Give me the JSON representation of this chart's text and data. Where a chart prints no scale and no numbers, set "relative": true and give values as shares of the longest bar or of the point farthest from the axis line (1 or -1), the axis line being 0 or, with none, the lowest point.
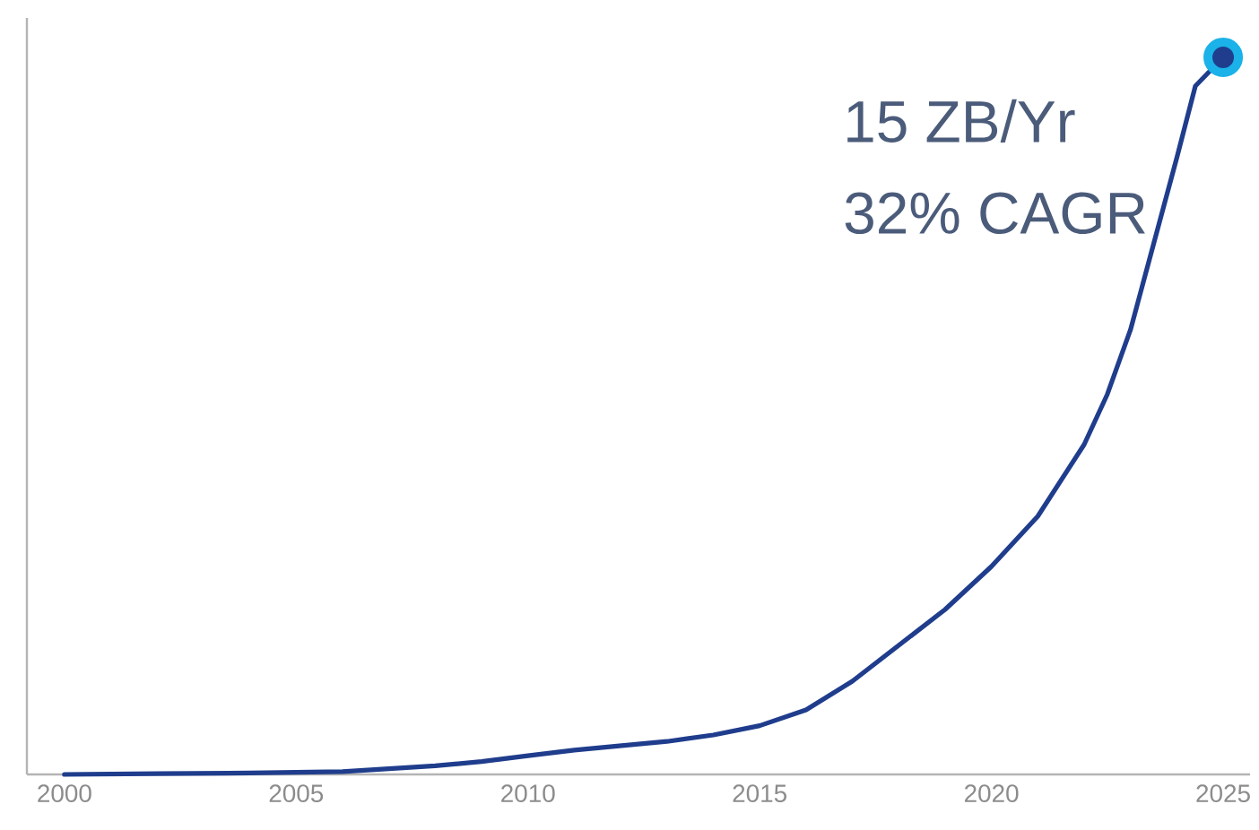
{
  "chart_data": {
    "type": "line",
    "relative": true,
    "marker": "none",
    "x": [
      2000,
      2002,
      2004,
      2006,
      2007,
      2008,
      2009,
      2010,
      2011,
      2012,
      2013,
      2014,
      2015,
      2016,
      2017,
      2018,
      2019,
      2020,
      2021,
      2022,
      2022.5,
      2023,
      2023.5,
      2024,
      2024.4,
      2025
    ],
    "xlim": [
      1999.19,
      2025.58
    ],
    "xticks": [
      2000,
      2005,
      2010,
      2015,
      2020,
      2025
    ],
    "series": [
      {
        "type": "line",
        "color": "#1f3d8c",
        "values": [
          0,
          0.001,
          0.002,
          0.004,
          0.008,
          0.012,
          0.018,
          0.026,
          0.034,
          0.04,
          0.046,
          0.055,
          0.068,
          0.09,
          0.13,
          0.18,
          0.23,
          0.29,
          0.36,
          0.46,
          0.53,
          0.62,
          0.74,
          0.86,
          0.96,
          1
        ]
      },
      {
        "type": "scatter",
        "marker": "circle",
        "color": "#1ab2e8",
        "x": [
          2025
        ],
        "values": [
          1
        ]
      }
    ],
    "annotations": [
      "15 ZB/Yr",
      "32% CAGR"
    ]
  }
}
